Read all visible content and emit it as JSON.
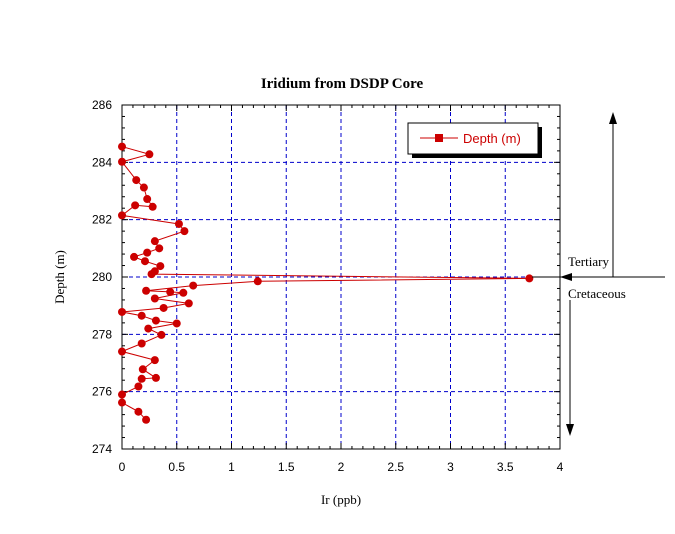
{
  "chart_data": {
    "type": "line",
    "title": "Iridium from DSDP Core",
    "xlabel": "Ir (ppb)",
    "ylabel": "Depth (m)",
    "xlim": [
      0,
      4
    ],
    "ylim": [
      274,
      286
    ],
    "xticks": [
      "0",
      "0.5",
      "1",
      "1.5",
      "2",
      "2.5",
      "3",
      "3.5",
      "4"
    ],
    "yticks": [
      "274",
      "276",
      "278",
      "280",
      "282",
      "284",
      "286"
    ],
    "grid": true,
    "legend_position": "top-right",
    "series": [
      {
        "name": "Depth (m)",
        "color": "#cc0000",
        "points": [
          [
            0.0,
            284.55
          ],
          [
            0.25,
            284.28
          ],
          [
            0.0,
            284.02
          ],
          [
            0.13,
            283.38
          ],
          [
            0.2,
            283.12
          ],
          [
            0.23,
            282.72
          ],
          [
            0.28,
            282.45
          ],
          [
            0.12,
            282.5
          ],
          [
            0.0,
            282.15
          ],
          [
            0.52,
            281.85
          ],
          [
            0.57,
            281.6
          ],
          [
            0.3,
            281.25
          ],
          [
            0.34,
            281.0
          ],
          [
            0.23,
            280.85
          ],
          [
            0.11,
            280.7
          ],
          [
            0.21,
            280.55
          ],
          [
            0.35,
            280.38
          ],
          [
            0.3,
            280.2
          ],
          [
            0.27,
            280.1
          ],
          [
            3.72,
            279.95
          ],
          [
            1.24,
            279.85
          ],
          [
            0.65,
            279.7
          ],
          [
            0.22,
            279.52
          ],
          [
            0.44,
            279.48
          ],
          [
            0.56,
            279.45
          ],
          [
            0.3,
            279.25
          ],
          [
            0.61,
            279.08
          ],
          [
            0.38,
            278.92
          ],
          [
            0.0,
            278.78
          ],
          [
            0.18,
            278.65
          ],
          [
            0.31,
            278.48
          ],
          [
            0.5,
            278.38
          ],
          [
            0.24,
            278.2
          ],
          [
            0.36,
            277.98
          ],
          [
            0.18,
            277.68
          ],
          [
            0.0,
            277.4
          ],
          [
            0.3,
            277.1
          ],
          [
            0.19,
            276.78
          ],
          [
            0.31,
            276.48
          ],
          [
            0.18,
            276.45
          ],
          [
            0.15,
            276.18
          ],
          [
            0.0,
            275.9
          ],
          [
            0.0,
            275.62
          ],
          [
            0.15,
            275.3
          ],
          [
            0.22,
            275.02
          ]
        ]
      }
    ],
    "annotations": {
      "boundary_depth": 280,
      "upper_label": "Tertiary",
      "lower_label": "Cretaceous"
    }
  }
}
